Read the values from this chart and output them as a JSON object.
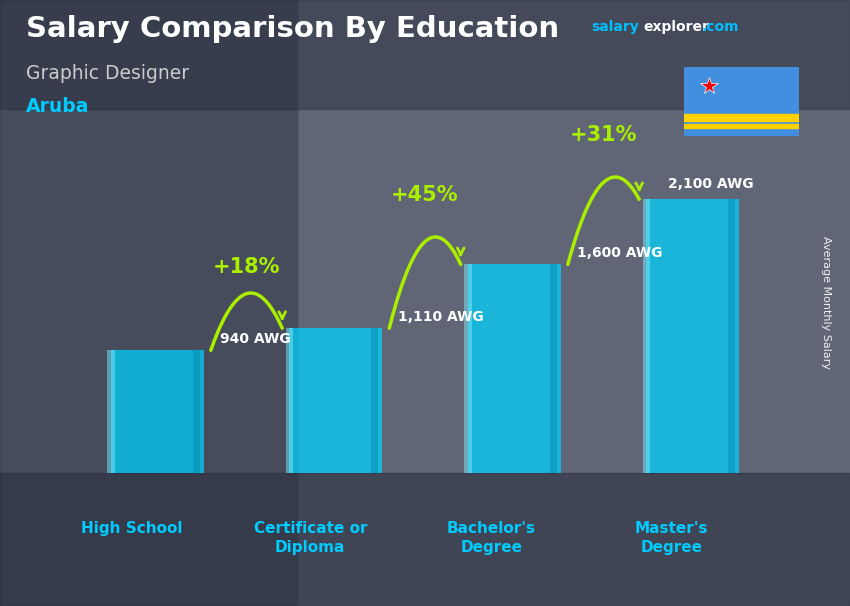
{
  "title": "Salary Comparison By Education",
  "subtitle": "Graphic Designer",
  "location": "Aruba",
  "ylabel": "Average Monthly Salary",
  "categories": [
    "High School",
    "Certificate or\nDiploma",
    "Bachelor's\nDegree",
    "Master's\nDegree"
  ],
  "values": [
    940,
    1110,
    1600,
    2100
  ],
  "value_labels": [
    "940 AWG",
    "1,110 AWG",
    "1,600 AWG",
    "2,100 AWG"
  ],
  "pct_changes": [
    "+18%",
    "+45%",
    "+31%"
  ],
  "bar_color": "#00D4FF",
  "bar_alpha": 0.72,
  "bar_width": 0.52,
  "title_color": "#FFFFFF",
  "subtitle_color": "#CCCCCC",
  "location_color": "#00CCFF",
  "value_label_color": "#FFFFFF",
  "pct_color": "#AAEE00",
  "xlabel_color": "#00CCFF",
  "ylabel_color": "#FFFFFF",
  "bg_color": "#4a5568",
  "salary_color1": "#00BFFF",
  "salary_color2": "#FFFFFF",
  "salary_color3": "#00BFFF",
  "ylim": 2700,
  "bar_positions": [
    0,
    1,
    2,
    3
  ]
}
